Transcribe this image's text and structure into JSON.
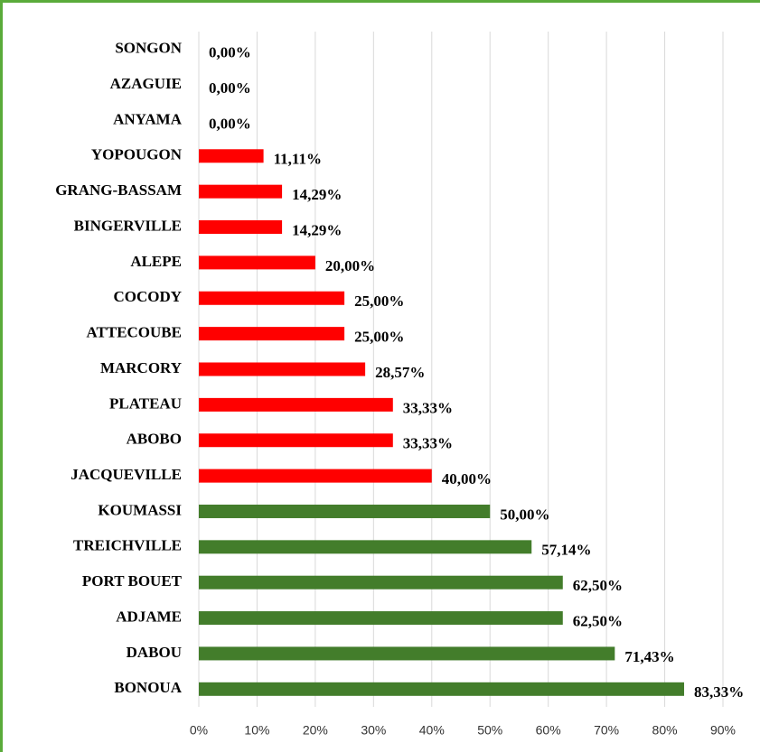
{
  "chart_data": {
    "type": "bar",
    "orientation": "horizontal",
    "categories": [
      "SONGON",
      "AZAGUIE",
      "ANYAMA",
      "YOPOUGON",
      "GRANG-BASSAM",
      "BINGERVILLE",
      "ALEPE",
      "COCODY",
      "ATTECOUBE",
      "MARCORY",
      "PLATEAU",
      "ABOBO",
      "JACQUEVILLE",
      "KOUMASSI",
      "TREICHVILLE",
      "PORT BOUET",
      "ADJAME",
      "DABOU",
      "BONOUA"
    ],
    "values": [
      0,
      0,
      0,
      11.11,
      14.29,
      14.29,
      20,
      25,
      25,
      28.57,
      33.33,
      33.33,
      40,
      50,
      57.14,
      62.5,
      62.5,
      71.43,
      83.33
    ],
    "value_labels": [
      "0,00%",
      "0,00%",
      "0,00%",
      "11,11%",
      "14,29%",
      "14,29%",
      "20,00%",
      "25,00%",
      "25,00%",
      "28,57%",
      "33,33%",
      "33,33%",
      "40,00%",
      "50,00%",
      "57,14%",
      "62,50%",
      "62,50%",
      "71,43%",
      "83,33%"
    ],
    "colors": [
      "#ff0000",
      "#ff0000",
      "#ff0000",
      "#ff0000",
      "#ff0000",
      "#ff0000",
      "#ff0000",
      "#ff0000",
      "#ff0000",
      "#ff0000",
      "#ff0000",
      "#ff0000",
      "#ff0000",
      "#437d2b",
      "#437d2b",
      "#437d2b",
      "#437d2b",
      "#437d2b",
      "#437d2b"
    ],
    "xlim": [
      0,
      90
    ],
    "xticks": [
      {
        "value": 0,
        "label": "0%"
      },
      {
        "value": 10,
        "label": "10%"
      },
      {
        "value": 20,
        "label": "20%"
      },
      {
        "value": 30,
        "label": "30%"
      },
      {
        "value": 40,
        "label": "40%"
      },
      {
        "value": 50,
        "label": "50%"
      },
      {
        "value": 60,
        "label": "60%"
      },
      {
        "value": 70,
        "label": "70%"
      },
      {
        "value": 80,
        "label": "80%"
      },
      {
        "value": 90,
        "label": "90%"
      }
    ],
    "grid": true
  }
}
